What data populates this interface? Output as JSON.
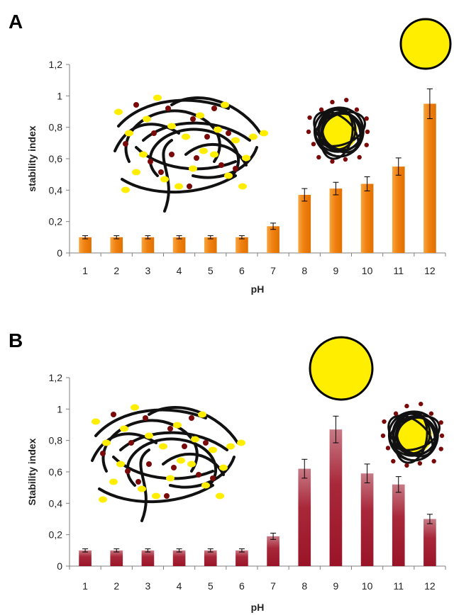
{
  "chart_data": [
    {
      "type": "bar",
      "panel_label": "A",
      "categories": [
        "1",
        "2",
        "3",
        "4",
        "5",
        "6",
        "7",
        "8",
        "9",
        "10",
        "11",
        "12"
      ],
      "values": [
        0.1,
        0.1,
        0.1,
        0.1,
        0.1,
        0.1,
        0.17,
        0.37,
        0.41,
        0.44,
        0.55,
        0.95
      ],
      "errors": [
        0.01,
        0.01,
        0.01,
        0.01,
        0.01,
        0.01,
        0.02,
        0.04,
        0.04,
        0.045,
        0.055,
        0.095
      ],
      "xlabel": "pH",
      "ylabel": "stability index",
      "ylim": [
        0,
        1.2
      ],
      "yticks": [
        "0",
        "0,2",
        "0,4",
        "0,6",
        "0,8",
        "1",
        "1,2"
      ],
      "grid": false,
      "bar_color": "#f08010"
    },
    {
      "type": "bar",
      "panel_label": "B",
      "categories": [
        "1",
        "2",
        "3",
        "4",
        "5",
        "6",
        "7",
        "8",
        "9",
        "10",
        "11",
        "12"
      ],
      "values": [
        0.1,
        0.1,
        0.1,
        0.1,
        0.1,
        0.1,
        0.19,
        0.62,
        0.87,
        0.59,
        0.52,
        0.3
      ],
      "errors": [
        0.01,
        0.01,
        0.01,
        0.01,
        0.01,
        0.01,
        0.02,
        0.06,
        0.085,
        0.06,
        0.05,
        0.03
      ],
      "xlabel": "pH",
      "ylabel": "Stability index",
      "ylim": [
        0,
        1.2
      ],
      "yticks": [
        "0",
        "0,2",
        "0,4",
        "0,6",
        "0,8",
        "1",
        "1,2"
      ],
      "grid": false,
      "bar_color": "#a8283a"
    }
  ],
  "illustration_colors": {
    "fiber": "#111111",
    "yellow_dot": "#ffee00",
    "red_dot": "#7a0a0a",
    "sphere": "#ffee00"
  }
}
